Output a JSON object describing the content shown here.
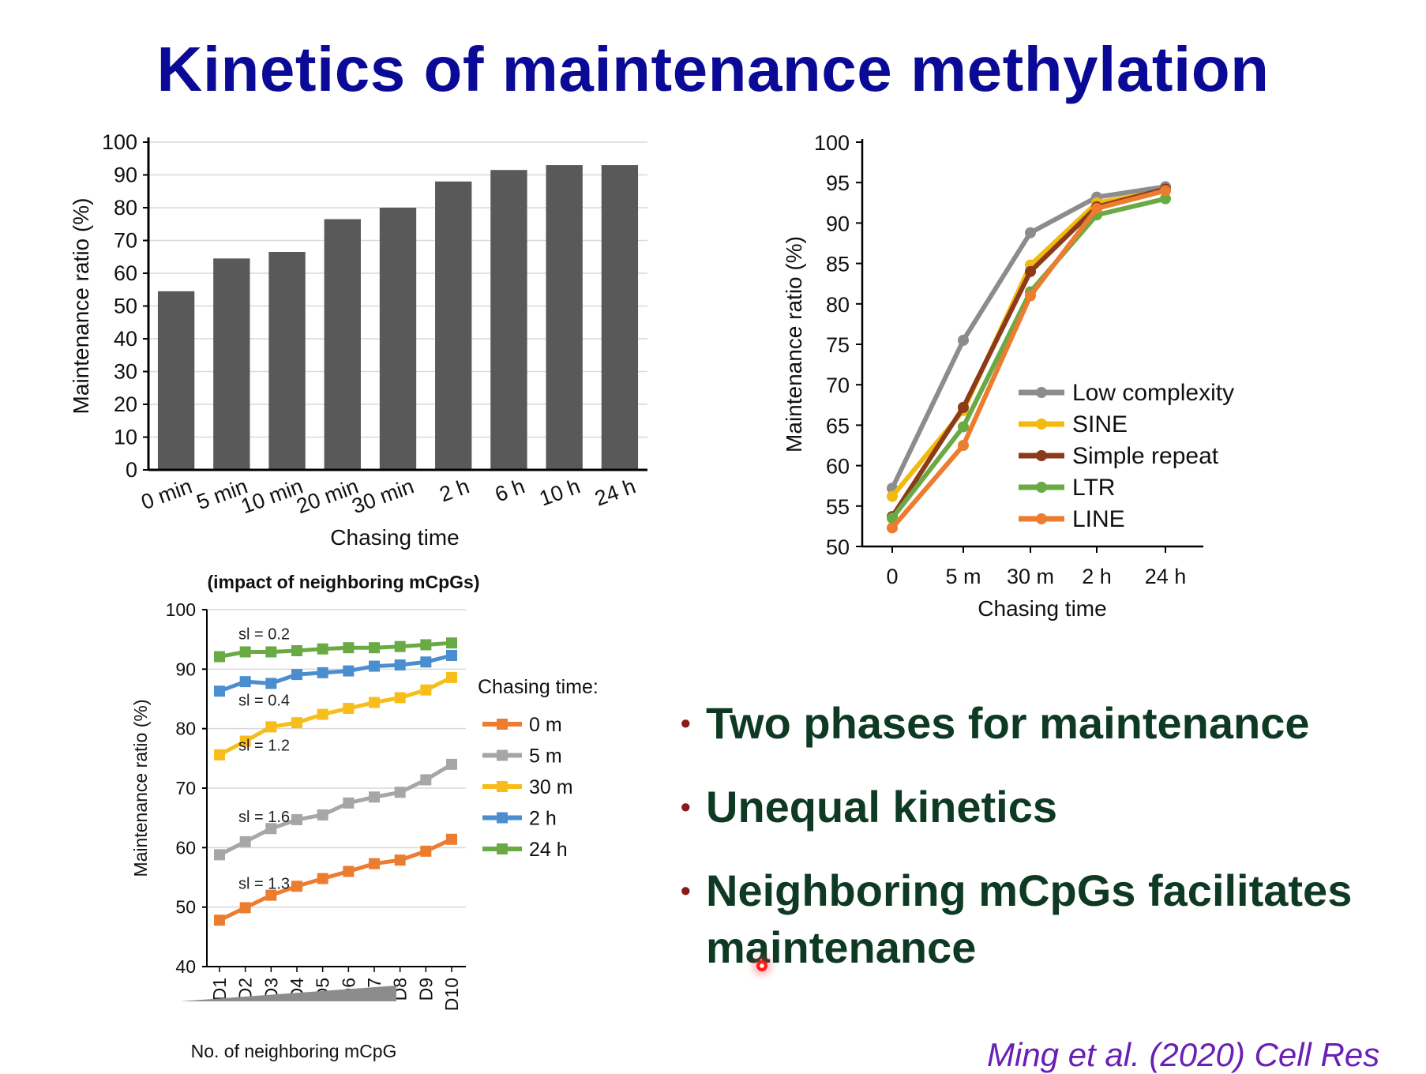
{
  "slide": {
    "title": "Kinetics of maintenance methylation",
    "citation": "Ming et al. (2020) Cell Res"
  },
  "bullets": [
    "Two phases for maintenance",
    "Unequal kinetics",
    "Neighboring mCpGs facilitates maintenance"
  ],
  "colors": {
    "title": "#0a0a96",
    "bullet_text": "#0e3a24",
    "bullet_marker": "#8b1a1a",
    "citation": "#6a1fb5",
    "bar": "#595959"
  },
  "chart_data": [
    {
      "type": "bar",
      "ylabel": "Maintenance ratio (%)",
      "xlabel": "Chasing time",
      "categories": [
        "0 min",
        "5 min",
        "10 min",
        "20 min",
        "30 min",
        "2 h",
        "6 h",
        "10 h",
        "24 h"
      ],
      "values": [
        54.5,
        64.5,
        66.5,
        76.5,
        80,
        88,
        91.5,
        93,
        93
      ],
      "ylim": [
        0,
        100
      ],
      "yticks": [
        0,
        10,
        20,
        30,
        40,
        50,
        60,
        70,
        80,
        90,
        100
      ],
      "grid": true
    },
    {
      "type": "line",
      "ylabel": "Maintenance ratio (%)",
      "xlabel": "Chasing time",
      "categories": [
        "0",
        "5 m",
        "30 m",
        "2 h",
        "24 h"
      ],
      "ylim": [
        50,
        100
      ],
      "yticks": [
        50,
        55,
        60,
        65,
        70,
        75,
        80,
        85,
        90,
        95,
        100
      ],
      "legend_position": "center-right",
      "series": [
        {
          "name": "Low complexity",
          "color": "#8c8c8c",
          "values": [
            57.2,
            75.5,
            88.8,
            93.2,
            94.5
          ]
        },
        {
          "name": "SINE",
          "color": "#f2b90f",
          "values": [
            56.2,
            66.8,
            84.8,
            92.5,
            94.0
          ]
        },
        {
          "name": "Simple repeat",
          "color": "#8b3a1a",
          "values": [
            53.7,
            67.2,
            84.0,
            92.0,
            94.2
          ]
        },
        {
          "name": "LTR",
          "color": "#6aaa44",
          "values": [
            53.5,
            64.8,
            81.5,
            91.0,
            93.0
          ]
        },
        {
          "name": "LINE",
          "color": "#ec7c30",
          "values": [
            52.3,
            62.5,
            81.0,
            91.8,
            94.0
          ]
        }
      ]
    },
    {
      "type": "line",
      "title": "(impact of neighboring mCpGs)",
      "ylabel": "Maintenance ratio (%)",
      "xlabel": "No. of neighboring mCpG",
      "categories": [
        "D1",
        "D2",
        "D3",
        "D4",
        "D5",
        "D6",
        "D7",
        "D8",
        "D9",
        "D10"
      ],
      "ylim": [
        40,
        100
      ],
      "yticks": [
        40,
        50,
        60,
        70,
        80,
        90,
        100
      ],
      "grid": true,
      "legend_title": "Chasing time:",
      "legend_position": "right",
      "series": [
        {
          "name": "0 m",
          "color": "#ec7c30",
          "slope_label": "sl = 1.3",
          "values": [
            47.8,
            49.9,
            52.0,
            53.5,
            54.8,
            56.0,
            57.3,
            57.9,
            59.4,
            61.4
          ]
        },
        {
          "name": "5 m",
          "color": "#a6a6a6",
          "slope_label": "sl = 1.6",
          "values": [
            58.8,
            61.0,
            63.2,
            64.7,
            65.5,
            67.5,
            68.5,
            69.3,
            71.4,
            74.0
          ]
        },
        {
          "name": "30 m",
          "color": "#f7bd1a",
          "slope_label": "sl = 1.2",
          "values": [
            75.6,
            77.9,
            80.3,
            81.0,
            82.4,
            83.4,
            84.4,
            85.2,
            86.5,
            88.6
          ]
        },
        {
          "name": "2 h",
          "color": "#4a8ed0",
          "slope_label": "sl = 0.4",
          "values": [
            86.3,
            87.9,
            87.6,
            89.1,
            89.4,
            89.7,
            90.5,
            90.7,
            91.2,
            92.3
          ]
        },
        {
          "name": "24 h",
          "color": "#6aaa44",
          "slope_label": "sl = 0.2",
          "values": [
            92.1,
            92.9,
            92.9,
            93.1,
            93.4,
            93.6,
            93.6,
            93.8,
            94.1,
            94.4
          ]
        }
      ]
    }
  ]
}
